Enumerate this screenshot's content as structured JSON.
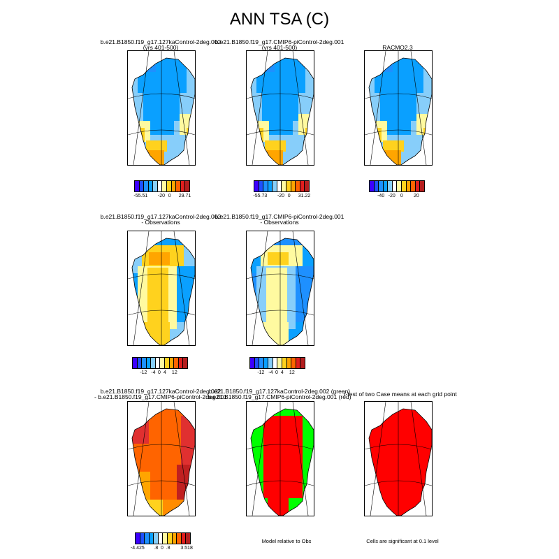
{
  "title": "ANN TSA (C)",
  "panels": [
    {
      "title1": "b.e21.B1850.f19_g17.127kaControl-2deg.002",
      "title2": "(yrs 401-500)",
      "scheme": "temp",
      "colors": [
        "#1e90ff",
        "#0aa0ff",
        "#87cefa",
        "#fffaa0",
        "#ffd21e",
        "#ffa500"
      ],
      "ticks": [
        "-55.51",
        "-20",
        "0",
        "29.71"
      ]
    },
    {
      "title1": "b.e21.B1850.f19_g17.CMIP6-piControl-2deg.001",
      "title2": "(yrs 401-500)",
      "scheme": "temp",
      "colors": [
        "#1e90ff",
        "#0aa0ff",
        "#87cefa",
        "#fffaa0",
        "#ffd21e",
        "#ffa500"
      ],
      "ticks": [
        "-55.73",
        "-20",
        "0",
        "31.22"
      ]
    },
    {
      "title1": "RACMO2.3",
      "title2": "",
      "scheme": "temp",
      "colors": [
        "#1e90ff",
        "#0aa0ff",
        "#87cefa",
        "#fffaa0",
        "#ffd21e",
        "#ffa500"
      ],
      "ticks": [
        "-40",
        "-20",
        "0",
        "20"
      ]
    },
    {
      "title1": "b.e21.B1850.f19_g17.127kaControl-2deg.002",
      "title2": "- Observations",
      "scheme": "bias",
      "colors": [
        "#ffd21e",
        "#ffa500",
        "#fffaa0",
        "#87cefa",
        "#0aa0ff",
        "#ff8c00"
      ],
      "ticks": [
        "-12",
        "-4",
        "0",
        "4",
        "12"
      ]
    },
    {
      "title1": "b.e21.B1850.f19_g17.CMIP6-piControl-2deg.001",
      "title2": "- Observations",
      "scheme": "bias",
      "colors": [
        "#fffaa0",
        "#ffd21e",
        "#87cefa",
        "#0aa0ff",
        "#1e90ff",
        "#ffa500"
      ],
      "ticks": [
        "-12",
        "-4",
        "0",
        "4",
        "12"
      ]
    },
    {
      "title1": "b.e21.B1850.f19_g17.127kaControl-2deg.002",
      "title2": "- b.e21.B1850.f19_g17.CMIP6-piControl-2deg.001",
      "scheme": "diff",
      "colors": [
        "#ff6400",
        "#ff8c00",
        "#e03030",
        "#ffa500",
        "#c02020",
        "#ffd21e"
      ],
      "ticks": [
        "-4.425",
        ".8",
        "0",
        ".8",
        "3.518"
      ]
    },
    {
      "title1": "b.e21.B1850.f19_g17.127kaControl-2deg.002 (green)",
      "title2": "b.e21.B1850.f19_g17.CMIP6-piControl-2deg.001 (red)",
      "scheme": "rg",
      "colors": [
        "#ff0000",
        "#00ff00"
      ],
      "note": "Model relative to Obs"
    },
    {
      "title1": "t-test of two Case means at each grid point",
      "title2": "",
      "scheme": "red",
      "colors": [
        "#ff0000"
      ],
      "note": "Cells are significant at 0.1 level"
    }
  ],
  "colorbar": [
    "#3c00ff",
    "#1e50ff",
    "#1e90ff",
    "#0aa0ff",
    "#87cefa",
    "#ffffff",
    "#fffaa0",
    "#ffd21e",
    "#ffa500",
    "#ff6400",
    "#e01e1e",
    "#b41e1e"
  ]
}
